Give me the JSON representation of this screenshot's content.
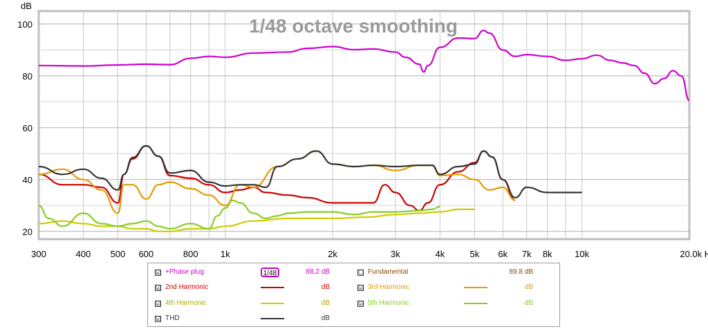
{
  "chart_data": {
    "type": "line",
    "title": "1/48 octave smoothing",
    "ylabel": "dB",
    "xlabel": "Hz",
    "x_scale": "log",
    "xlim": [
      300,
      20000
    ],
    "ylim": [
      17,
      105
    ],
    "grid": true,
    "x_ticks": [
      {
        "value": 300,
        "label": "300"
      },
      {
        "value": 400,
        "label": "400"
      },
      {
        "value": 500,
        "label": "500"
      },
      {
        "value": 600,
        "label": "600"
      },
      {
        "value": 800,
        "label": "800"
      },
      {
        "value": 1000,
        "label": "1k"
      },
      {
        "value": 2000,
        "label": "2k"
      },
      {
        "value": 3000,
        "label": "3k"
      },
      {
        "value": 4000,
        "label": "4k"
      },
      {
        "value": 5000,
        "label": "5k"
      },
      {
        "value": 6000,
        "label": "6k"
      },
      {
        "value": 7000,
        "label": "7k"
      },
      {
        "value": 8000,
        "label": "8k"
      },
      {
        "value": 10000,
        "label": "10k"
      },
      {
        "value": 20000,
        "label": "20.0k Hz"
      }
    ],
    "y_ticks": [
      {
        "value": 20,
        "label": "20"
      },
      {
        "value": 40,
        "label": "40"
      },
      {
        "value": 60,
        "label": "60"
      },
      {
        "value": 80,
        "label": "80"
      },
      {
        "value": 100,
        "label": "100"
      }
    ],
    "series": [
      {
        "name": "+Phase plug",
        "color": "#cc00cc",
        "x": [
          300,
          400,
          500,
          600,
          700,
          800,
          900,
          1000,
          1200,
          1500,
          1700,
          2000,
          2300,
          2600,
          3000,
          3200,
          3500,
          3600,
          3700,
          4000,
          4500,
          5000,
          5300,
          5500,
          6000,
          6500,
          7000,
          8000,
          9000,
          10000,
          11000,
          12000,
          13000,
          14000,
          15000,
          16000,
          17000,
          18000,
          19000,
          20000
        ],
        "y": [
          84,
          83.8,
          84.2,
          84.5,
          84.3,
          86.8,
          87.5,
          87.2,
          88.8,
          89.2,
          90.6,
          91.3,
          90.1,
          90.4,
          89.2,
          87.2,
          84.5,
          81.5,
          84,
          91,
          94.6,
          94.4,
          97.5,
          96.5,
          90,
          87.5,
          88.2,
          87.5,
          86,
          86.6,
          88,
          86,
          85,
          84,
          81,
          77,
          79,
          82,
          80,
          70.5
        ]
      },
      {
        "name": "2nd Harmonic",
        "color": "#cc0000",
        "x": [
          300,
          350,
          400,
          450,
          500,
          520,
          550,
          600,
          650,
          700,
          800,
          900,
          1000,
          1100,
          1200,
          1300,
          1500,
          1700,
          2000,
          2300,
          2600,
          2800,
          3000,
          3300,
          3500,
          3700,
          4000,
          4500,
          5000,
          5300,
          5600,
          6000,
          6500
        ],
        "y": [
          42,
          38,
          38,
          37,
          31,
          42,
          48,
          53,
          49,
          41.5,
          40.5,
          38,
          35,
          36,
          37,
          35,
          34,
          33,
          31,
          31,
          31,
          38,
          35,
          30,
          28,
          31,
          38,
          43,
          46.5,
          51,
          48.7,
          40,
          32
        ]
      },
      {
        "name": "3rd Harmonic",
        "color": "#e69900",
        "x": [
          300,
          350,
          400,
          450,
          500,
          520,
          550,
          600,
          650,
          700,
          800,
          900,
          1000,
          1100,
          1200,
          1400,
          1600,
          1800,
          2000,
          2300,
          2600,
          3000,
          3500,
          3800,
          4000,
          4500,
          5000,
          5500,
          6000,
          6500
        ],
        "y": [
          42,
          44,
          40,
          36,
          27,
          38,
          38,
          32.5,
          38,
          39,
          36.5,
          34,
          30,
          38,
          37,
          45,
          48,
          51,
          46,
          45,
          45.5,
          43.5,
          45.5,
          45.5,
          41.5,
          42,
          40,
          36,
          37,
          32
        ]
      },
      {
        "name": "4th Harmonic",
        "color": "#cccc00",
        "x": [
          300,
          350,
          400,
          450,
          500,
          550,
          600,
          650,
          700,
          800,
          900,
          1000,
          1200,
          1500,
          2000,
          2500,
          3000,
          3500,
          4000,
          4500,
          5000
        ],
        "y": [
          23,
          24,
          23,
          22,
          22,
          21,
          21,
          20,
          20,
          21,
          21,
          22,
          24,
          25,
          25,
          25.5,
          26.5,
          27,
          27.5,
          28.5,
          28.5
        ]
      },
      {
        "name": "5th Harmonic",
        "color": "#88cc22",
        "x": [
          300,
          320,
          350,
          400,
          450,
          500,
          550,
          600,
          650,
          700,
          800,
          900,
          950,
          1000,
          1050,
          1100,
          1200,
          1300,
          1400,
          1500,
          1700,
          2000,
          2300,
          2600,
          3000,
          3500,
          3800,
          4000
        ],
        "y": [
          30,
          25,
          22,
          27,
          23,
          22,
          23,
          24,
          22,
          21,
          23,
          21,
          26,
          29,
          32,
          31,
          27,
          25,
          26,
          27,
          27.5,
          27.5,
          26.5,
          27.5,
          27.5,
          28,
          28.5,
          29.5
        ]
      },
      {
        "name": "THD",
        "color": "#333333",
        "x": [
          300,
          350,
          400,
          450,
          500,
          520,
          550,
          600,
          650,
          700,
          800,
          900,
          1000,
          1100,
          1200,
          1300,
          1400,
          1600,
          1800,
          2000,
          2300,
          2600,
          3000,
          3500,
          3800,
          4000,
          4500,
          5000,
          5300,
          5600,
          6000,
          6500,
          7000,
          8000,
          9000,
          10000
        ],
        "y": [
          45,
          42,
          44,
          40.5,
          36,
          42,
          48.5,
          53,
          49,
          42.5,
          43.5,
          39,
          37.5,
          38,
          38,
          37,
          45,
          48,
          51,
          46,
          45,
          45.5,
          45,
          45.5,
          45.5,
          42,
          45,
          46,
          51,
          48.7,
          40,
          33,
          37,
          35,
          35,
          35
        ]
      }
    ]
  },
  "legend": {
    "items": [
      {
        "name": "+Phase plug",
        "checked": "☑",
        "color": "#cc00cc",
        "db": "88.2 dB"
      },
      {
        "name": "Fundamental",
        "checked": "☐",
        "color": "#8a4a00",
        "db": "89.8 dB"
      },
      {
        "name": "2nd Harmonic",
        "checked": "☑",
        "color": "#cc0000",
        "db": "dB"
      },
      {
        "name": "3rd Harmonic",
        "checked": "☑",
        "color": "#e69900",
        "db": "dB"
      },
      {
        "name": "4th Harmonic",
        "checked": "☑",
        "color": "#cccc00",
        "db": "dB"
      },
      {
        "name": "5th Harmonic",
        "checked": "☑",
        "color": "#88cc22",
        "db": "dB"
      },
      {
        "name": "THD",
        "checked": "☑",
        "color": "#333333",
        "db": "dB"
      }
    ],
    "smoothing_label": "1/48"
  }
}
